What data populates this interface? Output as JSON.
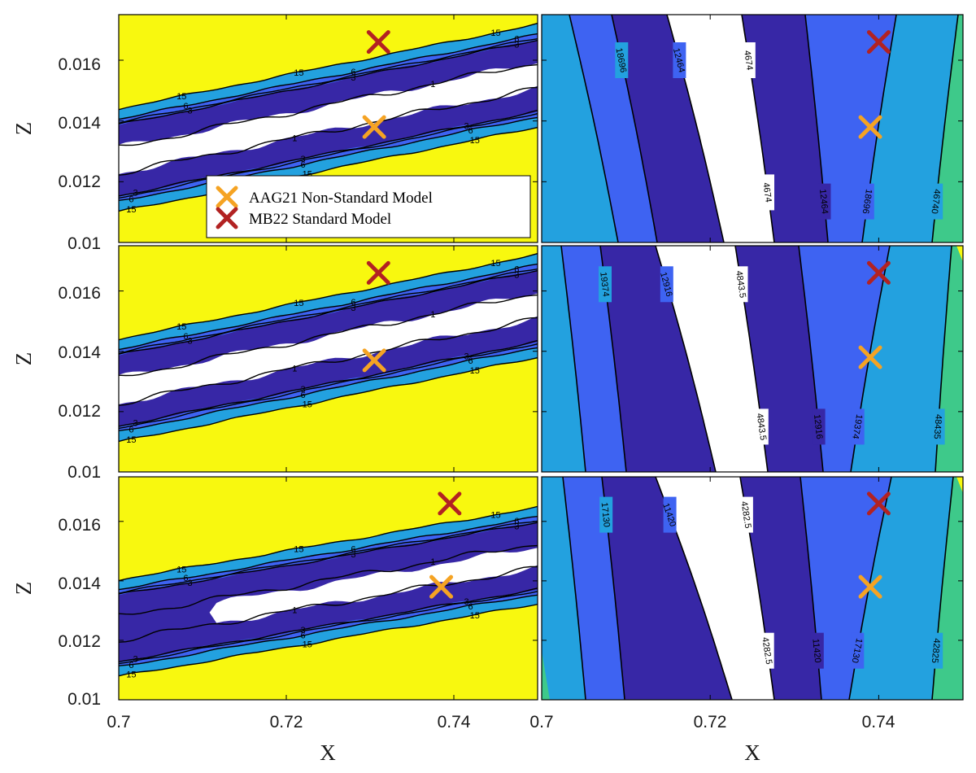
{
  "chart_data": {
    "type": "contour",
    "colors": {
      "yellow": "#f8f80f",
      "light_blue": "#23a1df",
      "mid_blue": "#3e63f2",
      "dark_blue": "#3727a6",
      "white": "#ffffff",
      "green": "#3ec98a",
      "lines": "#000000"
    },
    "legend": {
      "entries": [
        {
          "label": "AAG21 Non-Standard Model",
          "color": "#f5a323",
          "marker": "x"
        },
        {
          "label": "MB22 Standard Model",
          "color": "#b22222",
          "marker": "x"
        }
      ]
    },
    "markers": {
      "aag21": {
        "x": 0.739,
        "z": 0.0138
      },
      "mb22": {
        "x": 0.74,
        "z": 0.0166
      }
    },
    "shared_axes": {
      "xlabel": "X",
      "zlabel": "Z",
      "xlim": [
        0.7,
        0.75
      ],
      "zlim": [
        0.01,
        0.0175
      ],
      "xticks": [
        0.7,
        0.72,
        0.74
      ],
      "xtick_labels": [
        "0.7",
        "0.72",
        "0.74"
      ],
      "zticks": [
        0.01,
        0.012,
        0.014,
        0.016
      ],
      "ztick_labels": [
        "0.01",
        "0.012",
        "0.014",
        "0.016"
      ]
    },
    "left_panels": [
      {
        "row": 1,
        "contour_levels": [
          "1",
          "3",
          "6",
          "15"
        ],
        "aag21_marker": {
          "x": 0.7305,
          "z": 0.0138
        },
        "mb22_marker": {
          "x": 0.731,
          "z": 0.0166
        }
      },
      {
        "row": 2,
        "contour_levels": [
          "1",
          "3",
          "6",
          "15"
        ],
        "aag21_marker": {
          "x": 0.7305,
          "z": 0.0137
        },
        "mb22_marker": {
          "x": 0.731,
          "z": 0.0166
        }
      },
      {
        "row": 3,
        "contour_levels": [
          "1",
          "3",
          "6",
          "15"
        ],
        "aag21_marker": {
          "x": 0.7385,
          "z": 0.0138
        },
        "mb22_marker": {
          "x": 0.7395,
          "z": 0.0166
        }
      }
    ],
    "right_panels": [
      {
        "row": 1,
        "contour_labels": [
          "18696",
          "12464",
          "4674",
          "4674",
          "12464",
          "18696",
          "46740"
        ]
      },
      {
        "row": 2,
        "contour_labels": [
          "19374",
          "12916",
          "4843.5",
          "4843.5",
          "12916",
          "19374",
          "48435"
        ]
      },
      {
        "row": 3,
        "contour_labels": [
          "17130",
          "11420",
          "4282.5",
          "4282.5",
          "11420",
          "17130",
          "42825"
        ]
      }
    ]
  }
}
